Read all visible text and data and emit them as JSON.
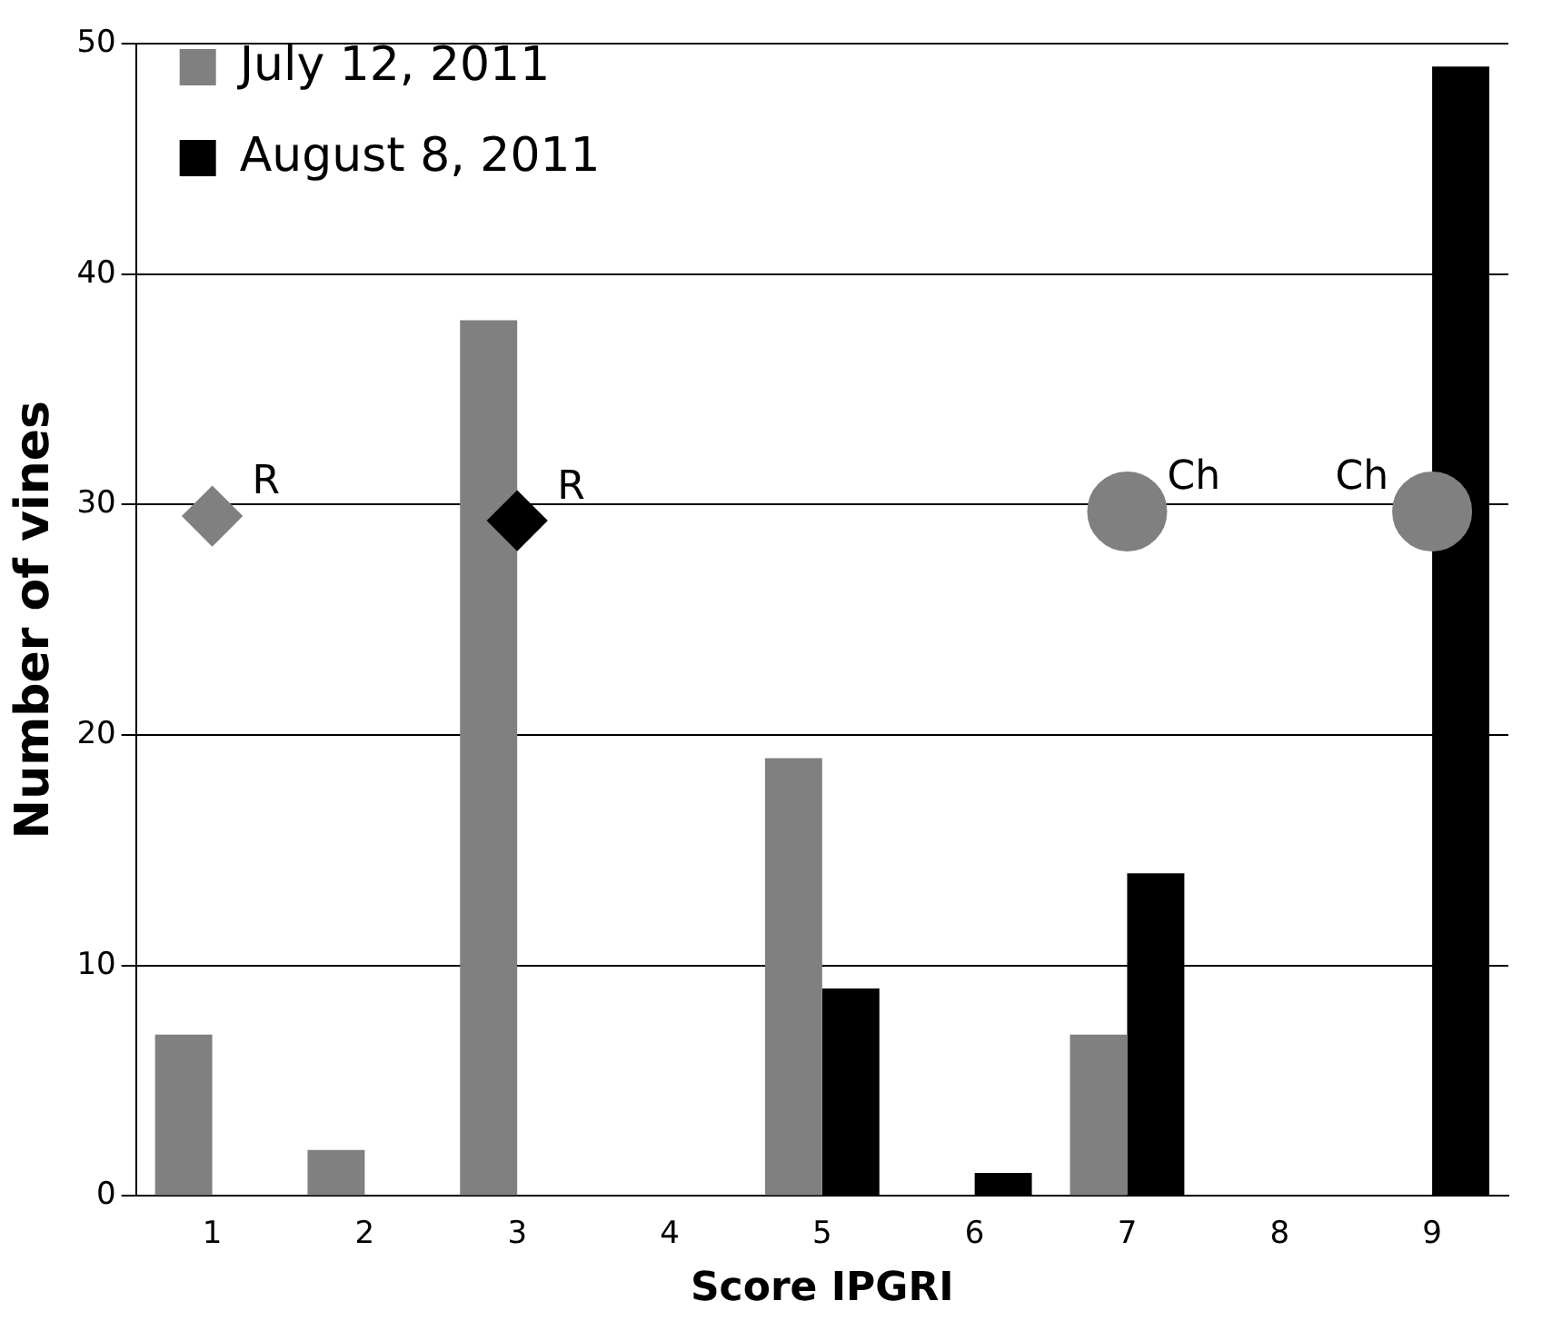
{
  "chart_data": {
    "type": "bar",
    "xlabel": "Score IPGRI",
    "ylabel": "Number of vines",
    "categories": [
      "1",
      "2",
      "3",
      "4",
      "5",
      "6",
      "7",
      "8",
      "9"
    ],
    "series": [
      {
        "name": "July 12, 2011",
        "color": "#808080",
        "values": [
          7,
          2,
          38,
          0,
          19,
          0,
          7,
          0,
          0
        ]
      },
      {
        "name": "August 8, 2011",
        "color": "#000000",
        "values": [
          0,
          0,
          0,
          0,
          9,
          1,
          14,
          0,
          49
        ]
      },
      {
        "type": "scatter",
        "name": "R",
        "color": "#808080",
        "marker": "diamond",
        "x": [
          "1"
        ],
        "values": [
          29.5
        ]
      },
      {
        "type": "scatter",
        "name": "R",
        "color": "#000000",
        "marker": "diamond",
        "x": [
          "3"
        ],
        "values": [
          29.3
        ]
      },
      {
        "type": "scatter",
        "name": "Ch",
        "color": "#808080",
        "marker": "circle",
        "x": [
          "7"
        ],
        "values": [
          29.7
        ]
      },
      {
        "type": "scatter",
        "name": "Ch",
        "color": "#808080",
        "marker": "circle",
        "x": [
          "9"
        ],
        "values": [
          29.7
        ]
      }
    ],
    "ylim": [
      0,
      50
    ],
    "yticks": [
      0,
      10,
      20,
      30,
      40,
      50
    ],
    "grid": "y",
    "legend": "top left"
  }
}
